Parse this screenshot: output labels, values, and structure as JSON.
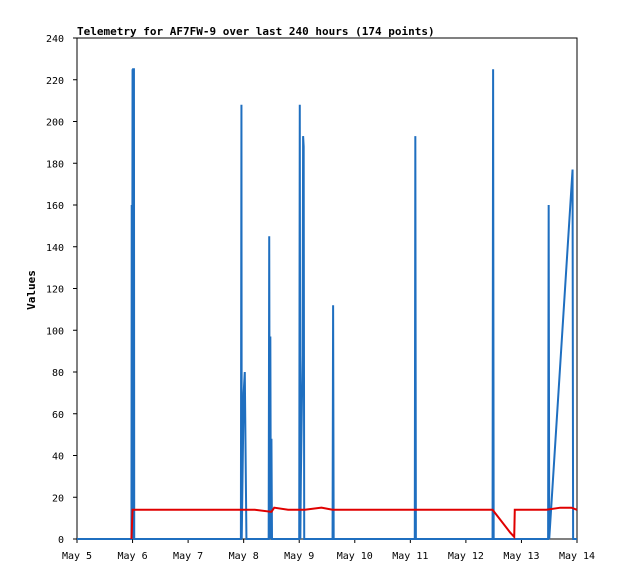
{
  "chart_data": {
    "type": "line",
    "title": "Telemetry for AF7FW-9 over last 240 hours (174 points)",
    "xlabel": "",
    "ylabel": "Values",
    "x_tick_labels": [
      "May 5",
      "May 6",
      "May 7",
      "May 8",
      "May 9",
      "May 10",
      "May 11",
      "May 12",
      "May 13",
      "May 14"
    ],
    "y_ticks": [
      0,
      20,
      40,
      60,
      80,
      100,
      120,
      140,
      160,
      180,
      200,
      220,
      240
    ],
    "xlim": [
      0,
      9
    ],
    "ylim": [
      0,
      240
    ],
    "grid": false,
    "x_unit": "days since May 5 00:00",
    "series": [
      {
        "color": "#1f6fc0",
        "x": [
          0,
          0.98,
          0.985,
          0.99,
          1.0,
          1.005,
          1.01,
          1.02,
          1.025,
          1.03,
          2.95,
          2.96,
          2.965,
          3.0,
          3.02,
          3.05,
          3.06,
          3.07,
          3.08,
          3.45,
          3.46,
          3.47,
          3.48,
          3.49,
          3.5,
          3.51,
          4.0,
          4.01,
          4.02,
          4.03,
          4.06,
          4.07,
          4.08,
          4.09,
          4.6,
          4.61,
          4.62,
          4.63,
          6.08,
          6.09,
          6.1,
          7.48,
          7.49,
          7.5,
          8.48,
          8.49,
          8.5,
          8.92,
          8.93,
          8.94,
          9.0
        ],
        "y": [
          0,
          0,
          160,
          0,
          225,
          0,
          225,
          225,
          225,
          0,
          0,
          208,
          0,
          70,
          80,
          0,
          0,
          0,
          0,
          0,
          145,
          0,
          97,
          0,
          48,
          0,
          0,
          208,
          0,
          30,
          88,
          193,
          188,
          0,
          0,
          112,
          0,
          0,
          0,
          193,
          0,
          0,
          225,
          0,
          0,
          160,
          0,
          177,
          0,
          0,
          0
        ]
      },
      {
        "color": "#e00000",
        "x": [
          0.98,
          1.0,
          1.5,
          2.0,
          2.5,
          2.95,
          3.2,
          3.5,
          3.55,
          3.8,
          4.1,
          4.4,
          4.6,
          5.0,
          5.5,
          6.0,
          6.5,
          7.0,
          7.48,
          7.8,
          7.87,
          7.88,
          8.0,
          8.45,
          8.7,
          8.9,
          9.0
        ],
        "y": [
          0,
          14,
          14,
          14,
          14,
          14,
          14,
          13,
          15,
          14,
          14,
          15,
          14,
          14,
          14,
          14,
          14,
          14,
          14,
          3,
          1,
          14,
          14,
          14,
          15,
          15,
          14
        ]
      }
    ]
  }
}
